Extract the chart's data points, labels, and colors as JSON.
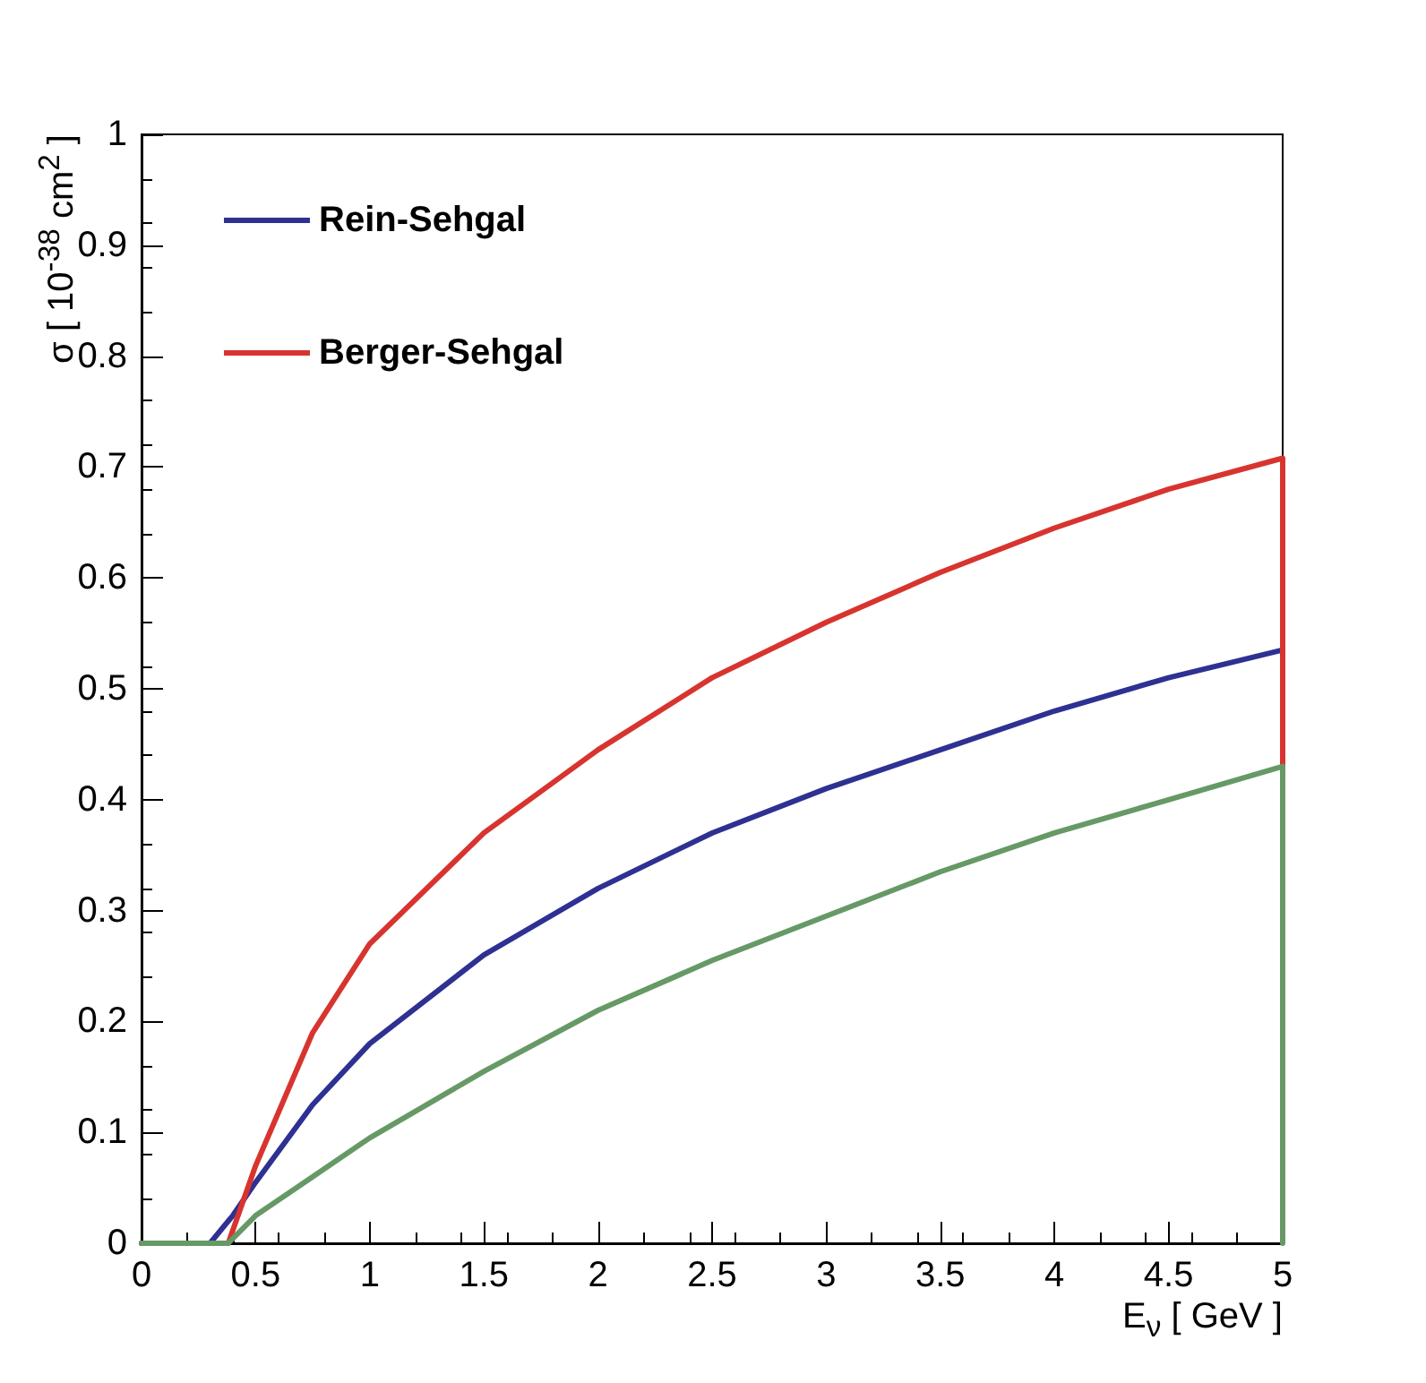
{
  "chart_data": {
    "type": "line",
    "xlabel": "E$_{ν}$  [ GeV ]",
    "ylabel": "σ  [ 10$^{-38}$ cm$^{2}$ ]",
    "xlim": [
      0,
      5
    ],
    "xticks": [
      0,
      0.5,
      1,
      1.5,
      2,
      2.5,
      3,
      3.5,
      4,
      4.5,
      5
    ],
    "ylim": [
      0,
      1
    ],
    "yticks": [
      0,
      0.1,
      0.2,
      0.3,
      0.4,
      0.5,
      0.6,
      0.7,
      0.8,
      0.9,
      1
    ],
    "grid": false,
    "legend": "top left",
    "marker": "none",
    "line_style": "solid",
    "series": [
      {
        "name": "Rein-Sehgal",
        "color": "#2e3192",
        "x": [
          0,
          0.3,
          0.4,
          0.5,
          0.75,
          1,
          1.5,
          2,
          2.5,
          3,
          3.5,
          4,
          4.5,
          5
        ],
        "values": [
          0,
          0,
          0.025,
          0.055,
          0.125,
          0.18,
          0.26,
          0.32,
          0.37,
          0.41,
          0.445,
          0.48,
          0.51,
          0.535
        ]
      },
      {
        "name": "Berger-Sehgal",
        "color": "#d8342f",
        "x": [
          0,
          0.38,
          0.5,
          0.75,
          1,
          1.5,
          2,
          2.5,
          3,
          3.5,
          4,
          4.5,
          5,
          5
        ],
        "values": [
          0,
          0,
          0.07,
          0.19,
          0.27,
          0.37,
          0.445,
          0.51,
          0.56,
          0.605,
          0.645,
          0.68,
          0.708,
          0.43
        ]
      },
      {
        "color": "#669966",
        "x": [
          0,
          0.38,
          0.5,
          0.75,
          1,
          1.5,
          2,
          2.5,
          3,
          3.5,
          4,
          4.5,
          5,
          5
        ],
        "values": [
          0,
          0,
          0.025,
          0.06,
          0.095,
          0.155,
          0.21,
          0.255,
          0.295,
          0.335,
          0.37,
          0.4,
          0.43,
          0
        ]
      }
    ]
  }
}
